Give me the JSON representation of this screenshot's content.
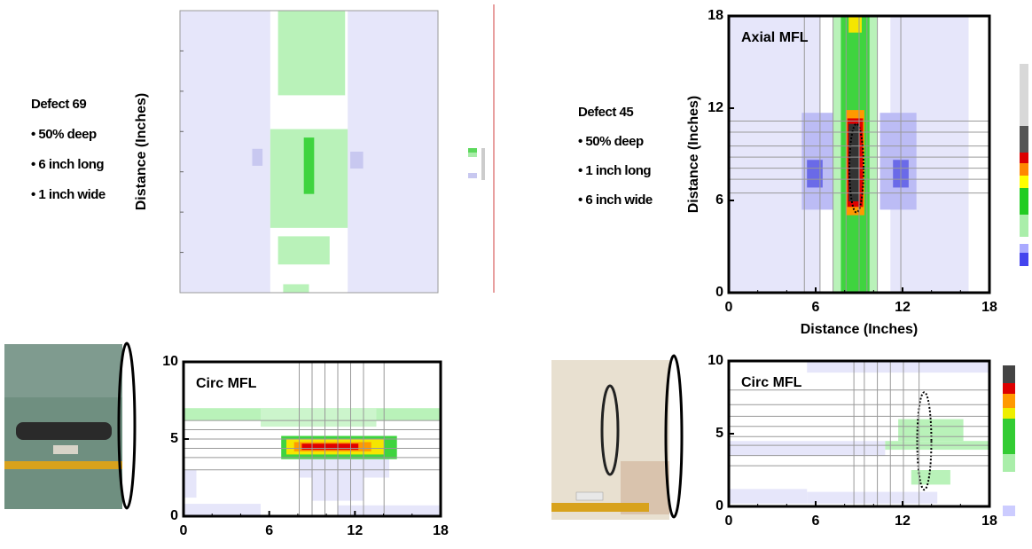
{
  "chart_data": [
    {
      "type": "heatmap",
      "ylabel": "Distance (Inches)"
    },
    {
      "type": "heatmap",
      "title": "Axial MFL",
      "xlabel": "Distance (Inches)",
      "ylabel": "Distance (Inches)",
      "xlim": [
        0,
        18
      ],
      "ylim": [
        0,
        18
      ],
      "xticks": [
        0,
        6,
        12,
        18
      ],
      "yticks": [
        0,
        6,
        12,
        18
      ]
    },
    {
      "type": "heatmap",
      "title": "Circ MFL",
      "xlim": [
        0,
        18
      ],
      "ylim": [
        0,
        10
      ],
      "xticks": [
        0,
        6,
        12,
        18
      ],
      "yticks": [
        0,
        5,
        10
      ]
    },
    {
      "type": "heatmap",
      "title": "Circ MFL",
      "xlim": [
        0,
        18
      ],
      "ylim": [
        0,
        10
      ],
      "xticks": [
        0,
        6,
        12,
        18
      ],
      "yticks": [
        0,
        5,
        10
      ]
    }
  ],
  "defects": [
    {
      "title": "Defect 69",
      "items": [
        "• 50% deep",
        "• 6 inch long",
        "• 1 inch wide"
      ]
    },
    {
      "title": "Defect 45",
      "items": [
        "• 50% deep",
        "• 1 inch long",
        "• 6 inch wide"
      ]
    }
  ]
}
